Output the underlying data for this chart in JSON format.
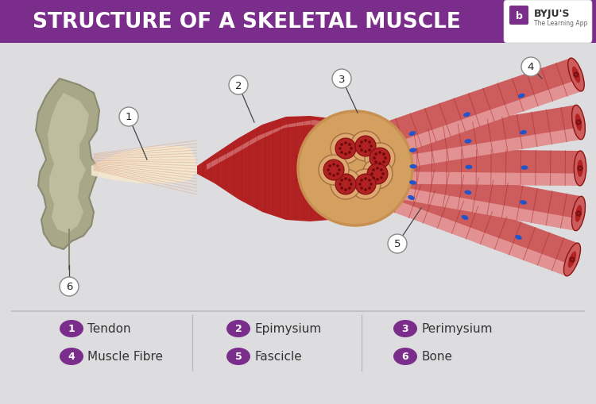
{
  "title": "STRUCTURE OF A SKELETAL MUSCLE",
  "title_bg": "#7B2D8B",
  "title_color": "#FFFFFF",
  "bg_color": "#DDDDE0",
  "legend_items": [
    {
      "num": "1",
      "label": "Tendon"
    },
    {
      "num": "2",
      "label": "Epimysium"
    },
    {
      "num": "3",
      "label": "Perimysium"
    },
    {
      "num": "4",
      "label": "Muscle Fibre"
    },
    {
      "num": "5",
      "label": "Fascicle"
    },
    {
      "num": "6",
      "label": "Bone"
    }
  ],
  "legend_circle_color": "#7B2D8B",
  "purple_color": "#7B2D8B",
  "muscle_red": "#B22222",
  "muscle_mid": "#CD5C5C",
  "muscle_light": "#E8A0A0",
  "muscle_pink": "#F5C0C0",
  "bone_dark": "#8A8A72",
  "bone_mid": "#A8A888",
  "bone_light": "#C8C8A8",
  "tendon_light": "#F5E8D0",
  "tendon_mid": "#E0C8A0",
  "cross_bg": "#D4A060",
  "cross_mid": "#C89050",
  "fasc_outer": "#E0A870",
  "blue_dot": "#2255CC",
  "label_line": "#444444"
}
